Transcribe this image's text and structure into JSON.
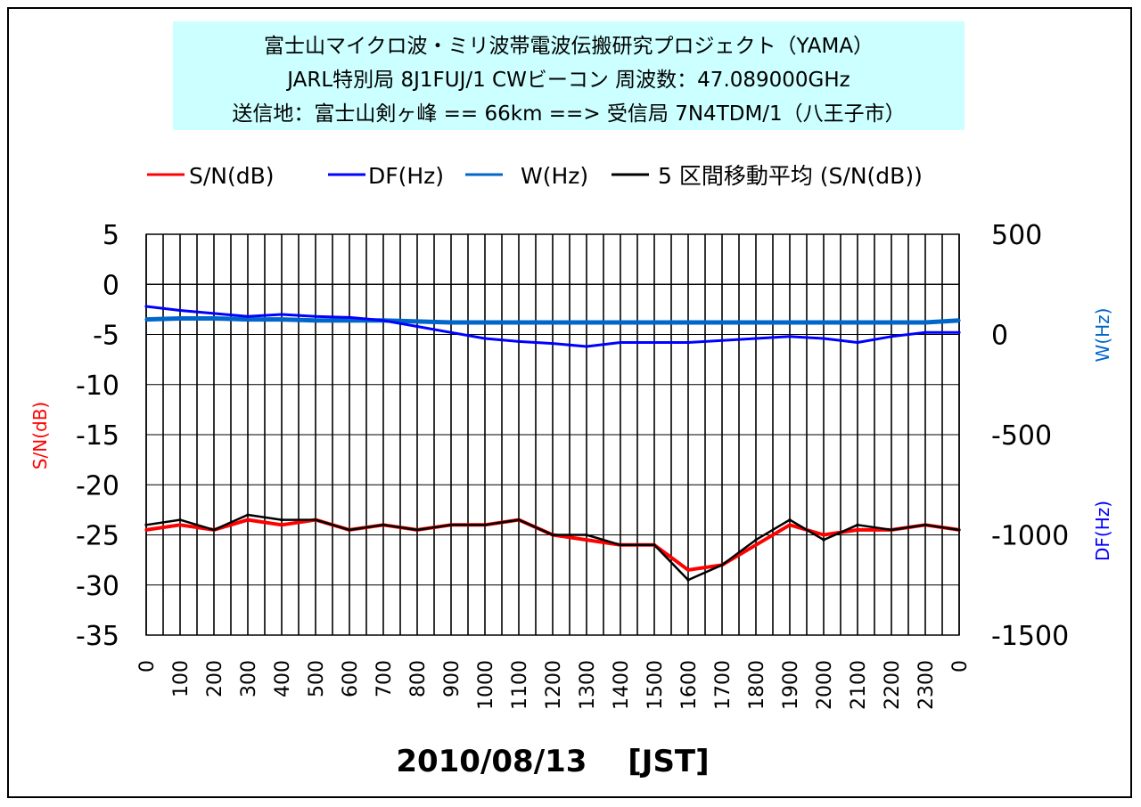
{
  "title": {
    "line1": "富士山マイクロ波・ミリ波帯電波伝搬研究プロジェクト（YAMA）",
    "line2": "JARL特別局 8J1FUJ/1  CWビーコン 周波数：47.089000GHz",
    "line3": "送信地：富士山剣ヶ峰  == 66km ==> 受信局 7N4TDM/1（八王子市）"
  },
  "legend": [
    {
      "label": "S/N(dB)",
      "color": "#ff0000"
    },
    {
      "label": "DF(Hz)",
      "color": "#0000ff"
    },
    {
      "label": "W(Hz)",
      "color": "#0066cc"
    },
    {
      "label": "5 区間移動平均 (S/N(dB))",
      "color": "#000000"
    }
  ],
  "ylabel_left": "S/N(dB)",
  "ylabel_right_w": "W(Hz)",
  "ylabel_right_df": "DF(Hz)",
  "xlabel": "2010/08/13　 [JST]",
  "colors": {
    "sn": "#ff0000",
    "df": "#0000ff",
    "w": "#0066cc",
    "avg": "#000000",
    "title_bg": "#ccffff"
  },
  "chart_data": {
    "type": "line",
    "title": "富士山マイクロ波・ミリ波帯電波伝搬研究プロジェクト（YAMA）",
    "xlabel": "2010/08/13 [JST]",
    "x_tick_labels": [
      "0",
      "100",
      "200",
      "300",
      "400",
      "500",
      "600",
      "700",
      "800",
      "900",
      "1000",
      "1100",
      "1200",
      "1300",
      "1400",
      "1500",
      "1600",
      "1700",
      "1800",
      "1900",
      "2000",
      "2100",
      "2200",
      "2300",
      "0"
    ],
    "y_left": {
      "label": "S/N(dB)",
      "lim": [
        -35,
        5
      ],
      "ticks": [
        5,
        0,
        -5,
        -10,
        -15,
        -20,
        -25,
        -30,
        -35
      ]
    },
    "y_right": {
      "label": [
        "W(Hz)",
        "DF(Hz)"
      ],
      "lim": [
        -1500,
        500
      ],
      "ticks": [
        500,
        0,
        -500,
        -1000,
        -1500
      ]
    },
    "grid": true,
    "legend_position": "top",
    "x": [
      0,
      1,
      2,
      3,
      4,
      5,
      6,
      7,
      8,
      9,
      10,
      11,
      12,
      13,
      14,
      15,
      16,
      17,
      18,
      19,
      20,
      21,
      22,
      23,
      24
    ],
    "series": [
      {
        "name": "S/N(dB)",
        "axis": "left",
        "values": [
          -24.5,
          -24,
          -24.5,
          -23.5,
          -24,
          -23.5,
          -24.5,
          -24,
          -24.5,
          -24,
          -24,
          -23.5,
          -25,
          -25.5,
          -26,
          -26,
          -28.5,
          -28,
          -26,
          -24,
          -25,
          -24.5,
          -24.5,
          -24,
          -24.5
        ]
      },
      {
        "name": "DF(Hz)",
        "axis": "right",
        "values": [
          140,
          120,
          105,
          90,
          100,
          90,
          85,
          70,
          40,
          10,
          -20,
          -35,
          -45,
          -60,
          -40,
          -40,
          -40,
          -30,
          -20,
          -10,
          -20,
          -40,
          -10,
          10,
          10
        ]
      },
      {
        "name": "W(Hz)",
        "axis": "right",
        "values": [
          75,
          80,
          80,
          75,
          75,
          70,
          70,
          70,
          65,
          60,
          60,
          60,
          60,
          60,
          60,
          60,
          60,
          60,
          60,
          60,
          60,
          60,
          60,
          60,
          70
        ]
      },
      {
        "name": "5 区間移動平均 (S/N(dB))",
        "axis": "left",
        "values": [
          -24,
          -23.5,
          -24.5,
          -23,
          -23.5,
          -23.5,
          -24.5,
          -24,
          -24.5,
          -24,
          -24,
          -23.5,
          -25,
          -25,
          -26,
          -26,
          -29.5,
          -28,
          -25.5,
          -23.5,
          -25.5,
          -24,
          -24.5,
          -24,
          -24.5
        ]
      }
    ]
  }
}
